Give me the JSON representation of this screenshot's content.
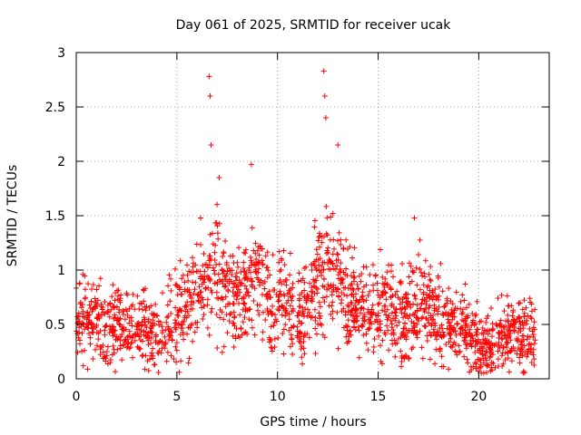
{
  "chart_data": {
    "type": "scatter",
    "title": "Day 061 of 2025, SRMTID for receiver ucak",
    "xlabel": "GPS time / hours",
    "ylabel": "SRMTID / TECUs",
    "xlim": [
      0,
      23.5
    ],
    "ylim": [
      0,
      3
    ],
    "xticks": [
      0,
      5,
      10,
      15,
      20
    ],
    "yticks": [
      0,
      0.5,
      1,
      1.5,
      2,
      2.5,
      3
    ],
    "xtick_labels": [
      "0",
      "5",
      "10",
      "15",
      "20"
    ],
    "ytick_labels": [
      "0",
      "0.5",
      "1",
      "1.5",
      "2",
      "2.5",
      "3"
    ],
    "grid": true,
    "marker": "+",
    "series": [
      {
        "name": "SRMTID",
        "color": "#ff0000",
        "profile_note": "dense time series sampled along this envelope",
        "x": [
          0,
          0.5,
          1,
          1.5,
          2,
          2.5,
          3,
          3.5,
          4,
          4.5,
          5,
          5.5,
          6,
          6.5,
          7,
          7.5,
          8,
          8.5,
          9,
          9.5,
          10,
          10.5,
          11,
          11.5,
          12,
          12.5,
          13,
          13.5,
          14,
          14.5,
          15,
          15.5,
          16,
          16.5,
          17,
          17.5,
          18,
          18.5,
          19,
          19.5,
          20,
          20.5,
          21,
          21.5,
          22,
          22.5,
          22.8
        ],
        "y": [
          0.6,
          0.55,
          0.5,
          0.45,
          0.5,
          0.45,
          0.55,
          0.5,
          0.4,
          0.5,
          0.55,
          0.65,
          0.85,
          0.95,
          0.9,
          0.8,
          0.7,
          0.85,
          0.9,
          0.75,
          0.7,
          0.75,
          0.55,
          0.6,
          0.95,
          1.0,
          0.85,
          0.75,
          0.65,
          0.6,
          0.65,
          0.7,
          0.6,
          0.55,
          0.7,
          0.65,
          0.6,
          0.5,
          0.45,
          0.45,
          0.3,
          0.3,
          0.35,
          0.45,
          0.4,
          0.35,
          0.35
        ]
      }
    ],
    "peaks": {
      "x": [
        6.6,
        6.65,
        6.7,
        7.1,
        8.7,
        12.3,
        12.35,
        12.4,
        13.0,
        16.8
      ],
      "y": [
        2.78,
        2.6,
        2.15,
        1.85,
        1.97,
        2.83,
        2.6,
        2.4,
        2.15,
        1.48
      ]
    }
  }
}
